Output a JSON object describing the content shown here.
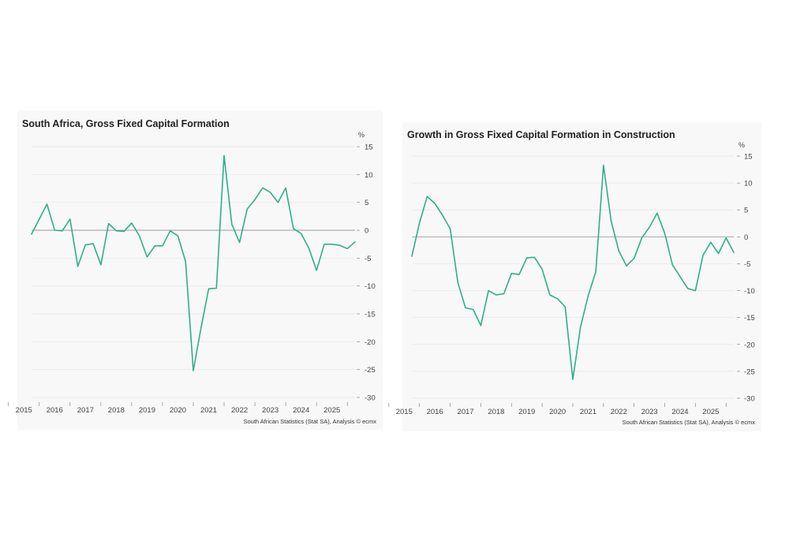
{
  "colors": {
    "line": "#2fae8d",
    "grid": "#e6e6e6",
    "zero": "#9a9a9a",
    "text": "#444444"
  },
  "chart_data": [
    {
      "type": "line",
      "title": "South Africa, Gross Fixed Capital Formation",
      "unit": "%",
      "source": "South African Statistics (Stat SA), Analysis © ecmx",
      "ylim": [
        -30,
        15
      ],
      "y_ticks": [
        15,
        10,
        5,
        0,
        -5,
        -10,
        -15,
        -20,
        -25,
        -30
      ],
      "year_labels": [
        "2015",
        "2016",
        "2017",
        "2018",
        "2019",
        "2020",
        "2021",
        "2022",
        "2023",
        "2024",
        "2025"
      ],
      "x_start": "2014 Q4",
      "grid": true,
      "series": [
        {
          "values": [
            -0.7,
            2.0,
            4.7,
            0.0,
            -0.1,
            2.0,
            -6.5,
            -2.6,
            -2.4,
            -6.2,
            1.2,
            -0.1,
            -0.2,
            1.3,
            -1.0,
            -4.8,
            -2.8,
            -2.8,
            -0.1,
            -1.0,
            -5.6,
            -25.2,
            -17.5,
            -10.5,
            -10.4,
            13.4,
            1.1,
            -2.2,
            3.8,
            5.5,
            7.6,
            6.8,
            5.0,
            7.6,
            0.3,
            -0.6,
            -3.2,
            -7.2,
            -2.5,
            -2.5,
            -2.7,
            -3.3,
            -2.1
          ]
        }
      ]
    },
    {
      "type": "line",
      "title": "Growth in Gross Fixed Capital Formation in Construction",
      "unit": "%",
      "source": "South African Statistics (Stat SA), Analysis © ecmx",
      "ylim": [
        -30,
        15
      ],
      "y_ticks": [
        15,
        10,
        5,
        0,
        -5,
        -10,
        -15,
        -20,
        -25,
        -30
      ],
      "year_labels": [
        "2015",
        "2016",
        "2017",
        "2018",
        "2019",
        "2020",
        "2021",
        "2022",
        "2023",
        "2024",
        "2025"
      ],
      "x_start": "2014 Q4",
      "grid": true,
      "series": [
        {
          "values": [
            -3.6,
            2.6,
            7.5,
            6.2,
            4.0,
            1.5,
            -8.5,
            -13.2,
            -13.5,
            -16.5,
            -10.0,
            -10.8,
            -10.6,
            -6.8,
            -7.0,
            -3.9,
            -3.8,
            -6.0,
            -10.8,
            -11.5,
            -13.0,
            -26.5,
            -16.8,
            -11.0,
            -6.5,
            13.3,
            2.9,
            -2.6,
            -5.4,
            -4.0,
            -0.2,
            1.8,
            4.4,
            0.6,
            -5.2,
            -7.4,
            -9.6,
            -10.0,
            -3.4,
            -1.0,
            -3.1,
            -0.2,
            -2.9
          ]
        }
      ]
    }
  ]
}
